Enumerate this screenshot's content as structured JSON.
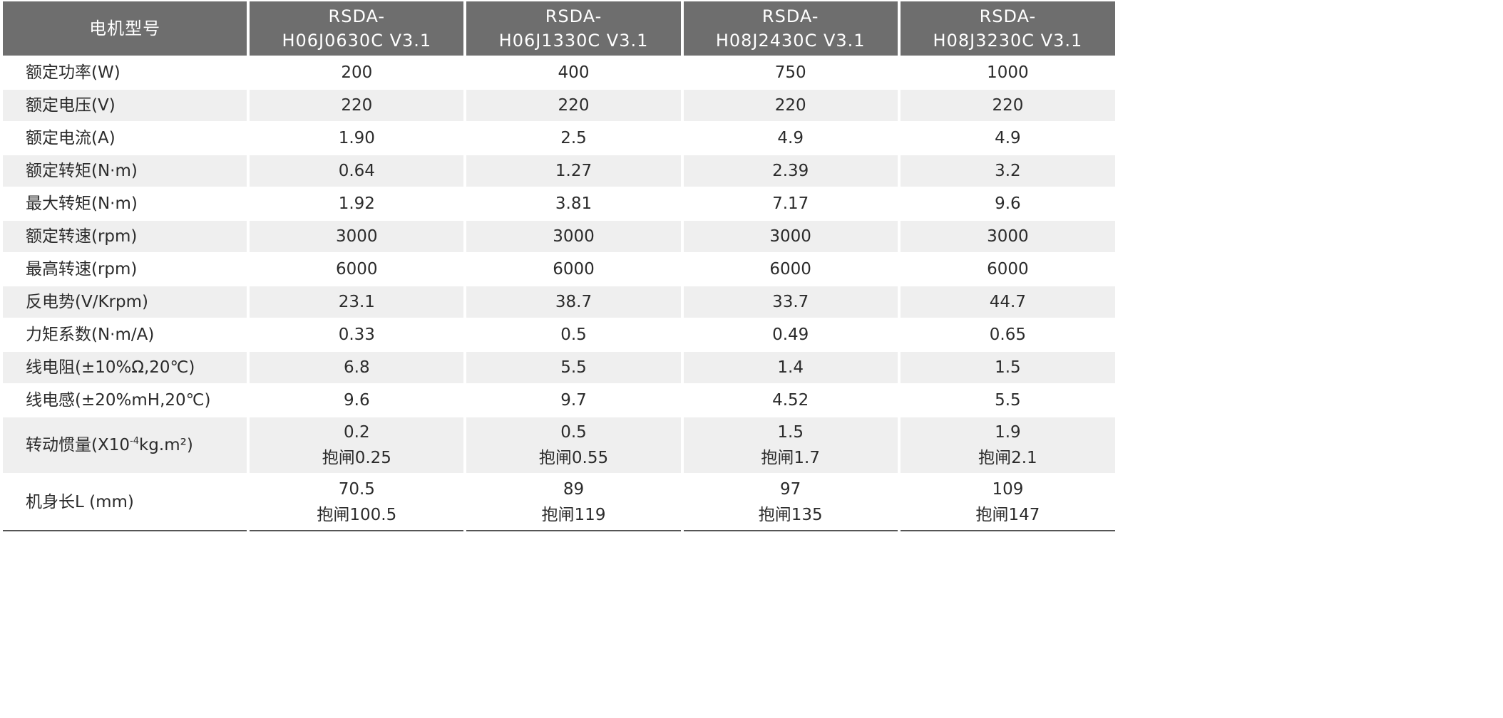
{
  "table": {
    "header": {
      "model_label": "电机型号",
      "models": [
        {
          "line1": "RSDA-",
          "line2": "H06J0630C V3.1"
        },
        {
          "line1": "RSDA-",
          "line2": "H06J1330C V3.1"
        },
        {
          "line1": "RSDA-",
          "line2": "H08J2430C V3.1"
        },
        {
          "line1": "RSDA-",
          "line2": "H08J3230C V3.1"
        }
      ]
    },
    "rows": [
      {
        "label": "额定功率(W)",
        "values": [
          "200",
          "400",
          "750",
          "1000"
        ]
      },
      {
        "label": "额定电压(V)",
        "values": [
          "220",
          "220",
          "220",
          "220"
        ]
      },
      {
        "label": "额定电流(A)",
        "values": [
          "1.90",
          "2.5",
          "4.9",
          "4.9"
        ]
      },
      {
        "label": "额定转矩(N·m)",
        "values": [
          "0.64",
          "1.27",
          "2.39",
          "3.2"
        ]
      },
      {
        "label": "最大转矩(N·m)",
        "values": [
          "1.92",
          "3.81",
          "7.17",
          "9.6"
        ]
      },
      {
        "label": "额定转速(rpm)",
        "values": [
          "3000",
          "3000",
          "3000",
          "3000"
        ]
      },
      {
        "label": "最高转速(rpm)",
        "values": [
          "6000",
          "6000",
          "6000",
          "6000"
        ]
      },
      {
        "label": "反电势(V/Krpm)",
        "values": [
          "23.1",
          "38.7",
          "33.7",
          "44.7"
        ]
      },
      {
        "label": "力矩系数(N·m/A)",
        "values": [
          "0.33",
          "0.5",
          "0.49",
          "0.65"
        ]
      },
      {
        "label": "线电阻(±10%Ω,20℃)",
        "values": [
          "6.8",
          "5.5",
          "1.4",
          "1.5"
        ]
      },
      {
        "label": "线电感(±20%mH,20℃)",
        "values": [
          "9.6",
          "9.7",
          "4.52",
          "5.5"
        ]
      }
    ],
    "inertia_row": {
      "label_pre": "转动惯量(X10",
      "label_sup": "-4",
      "label_post": "kg.m²)",
      "values": [
        {
          "line1": "0.2",
          "line2": "抱闸0.25"
        },
        {
          "line1": "0.5",
          "line2": "抱闸0.55"
        },
        {
          "line1": "1.5",
          "line2": "抱闸1.7"
        },
        {
          "line1": "1.9",
          "line2": "抱闸2.1"
        }
      ]
    },
    "length_row": {
      "label": "机身长L (mm)",
      "values": [
        {
          "line1": "70.5",
          "line2": "抱闸100.5"
        },
        {
          "line1": "89",
          "line2": "抱闸119"
        },
        {
          "line1": "97",
          "line2": "抱闸135"
        },
        {
          "line1": "109",
          "line2": "抱闸147"
        }
      ]
    }
  },
  "colors": {
    "header_bg": "#6e6e6e",
    "header_text": "#ffffff",
    "stripe_bg": "#efefef",
    "text": "#2b2b2b"
  }
}
